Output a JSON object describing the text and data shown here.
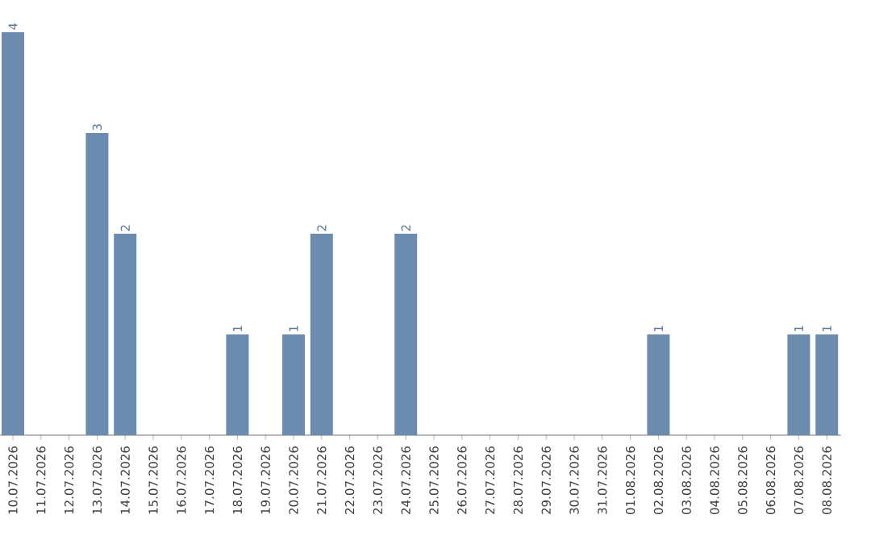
{
  "chart_data": {
    "type": "bar",
    "color": "#6b8cae",
    "categories": [
      "10.07.2026",
      "11.07.2026",
      "12.07.2026",
      "13.07.2026",
      "14.07.2026",
      "15.07.2026",
      "16.07.2026",
      "17.07.2026",
      "18.07.2026",
      "19.07.2026",
      "20.07.2026",
      "21.07.2026",
      "22.07.2026",
      "23.07.2026",
      "24.07.2026",
      "25.07.2026",
      "26.07.2026",
      "27.07.2026",
      "28.07.2026",
      "29.07.2026",
      "30.07.2026",
      "31.07.2026",
      "01.08.2026",
      "02.08.2026",
      "03.08.2026",
      "04.08.2026",
      "05.08.2026",
      "06.08.2026",
      "07.08.2026",
      "08.08.2026"
    ],
    "values": [
      4,
      0,
      0,
      3,
      2,
      0,
      0,
      0,
      1,
      0,
      1,
      2,
      0,
      0,
      2,
      0,
      0,
      0,
      0,
      0,
      0,
      0,
      0,
      1,
      0,
      0,
      0,
      0,
      1,
      1
    ],
    "value_labels": [
      "4",
      null,
      null,
      "3",
      "2",
      null,
      null,
      null,
      "1",
      null,
      "1",
      "2",
      null,
      null,
      "2",
      null,
      null,
      null,
      null,
      null,
      null,
      null,
      null,
      "1",
      null,
      null,
      null,
      null,
      "1",
      "1"
    ],
    "grid": false
  }
}
